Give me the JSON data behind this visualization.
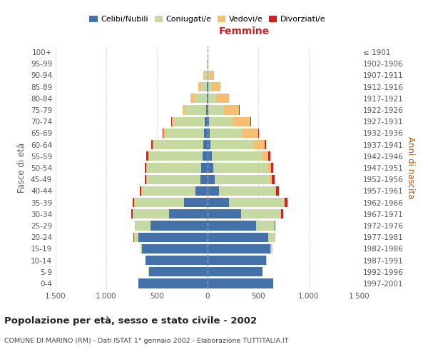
{
  "age_groups": [
    "0-4",
    "5-9",
    "10-14",
    "15-19",
    "20-24",
    "25-29",
    "30-34",
    "35-39",
    "40-44",
    "45-49",
    "50-54",
    "55-59",
    "60-64",
    "65-69",
    "70-74",
    "75-79",
    "80-84",
    "85-89",
    "90-94",
    "95-99",
    "100+"
  ],
  "birth_years": [
    "1997-2001",
    "1992-1996",
    "1987-1991",
    "1982-1986",
    "1977-1981",
    "1972-1976",
    "1967-1971",
    "1962-1966",
    "1957-1961",
    "1952-1956",
    "1947-1951",
    "1942-1946",
    "1937-1941",
    "1932-1936",
    "1927-1931",
    "1922-1926",
    "1917-1921",
    "1912-1916",
    "1907-1911",
    "1902-1906",
    "≤ 1901"
  ],
  "males": {
    "celibi": [
      680,
      580,
      610,
      650,
      680,
      560,
      380,
      230,
      120,
      70,
      60,
      50,
      40,
      35,
      25,
      15,
      10,
      5,
      2,
      0,
      0
    ],
    "coniugati": [
      0,
      2,
      5,
      10,
      40,
      150,
      360,
      490,
      530,
      530,
      540,
      530,
      490,
      390,
      310,
      200,
      120,
      60,
      25,
      5,
      2
    ],
    "vedovi": [
      0,
      0,
      0,
      2,
      8,
      5,
      2,
      2,
      2,
      3,
      5,
      8,
      10,
      15,
      20,
      30,
      40,
      25,
      15,
      2,
      0
    ],
    "divorziati": [
      0,
      0,
      0,
      0,
      2,
      5,
      15,
      20,
      20,
      20,
      15,
      20,
      15,
      5,
      5,
      2,
      2,
      2,
      0,
      0,
      0
    ]
  },
  "females": {
    "nubili": [
      650,
      540,
      580,
      620,
      600,
      480,
      330,
      210,
      110,
      70,
      55,
      40,
      30,
      20,
      15,
      10,
      8,
      5,
      2,
      0,
      0
    ],
    "coniugate": [
      0,
      2,
      5,
      20,
      60,
      180,
      390,
      540,
      550,
      540,
      540,
      500,
      430,
      320,
      230,
      150,
      80,
      40,
      20,
      5,
      2
    ],
    "vedove": [
      0,
      0,
      0,
      2,
      8,
      5,
      5,
      10,
      15,
      25,
      35,
      60,
      100,
      160,
      180,
      150,
      120,
      80,
      40,
      5,
      0
    ],
    "divorziate": [
      0,
      0,
      0,
      0,
      2,
      5,
      20,
      30,
      30,
      25,
      20,
      20,
      15,
      5,
      5,
      5,
      2,
      2,
      0,
      0,
      0
    ]
  },
  "colors": {
    "celibi": "#4472a8",
    "coniugati": "#c5d9a0",
    "vedovi": "#f4bf72",
    "divorziati": "#cc2222"
  },
  "xlim": 1500,
  "title": "Popolazione per età, sesso e stato civile - 2002",
  "subtitle": "COMUNE DI MARINO (RM) - Dati ISTAT 1° gennaio 2002 - Elaborazione TUTTITALIA.IT",
  "ylabel_left": "Fasce di età",
  "ylabel_right": "Anni di nascita",
  "xlabel_right": "Femmine",
  "xtick_labels": [
    "1.500",
    "1.000",
    "500",
    "0",
    "500",
    "1.000",
    "1.500"
  ],
  "background_color": "#ffffff",
  "grid_color": "#cccccc"
}
